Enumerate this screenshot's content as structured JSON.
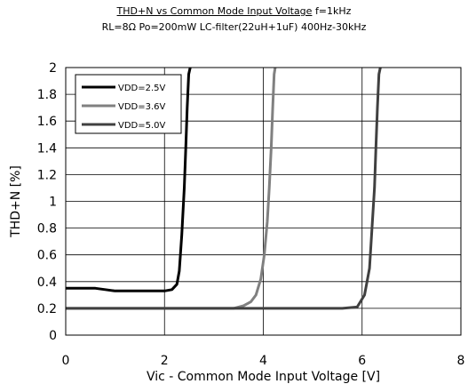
{
  "chart_data": {
    "type": "line",
    "title": "THD+N vs Common Mode Input Voltage",
    "title_suffix": "f=1kHz",
    "subtitle": "RL=8Ω Po=200mW LC-filter(22uH+1uF) 400Hz-30kHz",
    "xlabel": "Vic - Common Mode Input Voltage [V]",
    "ylabel": "THD+N [%]",
    "xlim": [
      0,
      8
    ],
    "ylim": [
      0,
      2
    ],
    "xticks": [
      "0",
      "2",
      "4",
      "6",
      "8"
    ],
    "yticks": [
      "0",
      "0.2",
      "0.4",
      "0.6",
      "0.8",
      "1",
      "1.2",
      "1.4",
      "1.6",
      "1.8",
      "2"
    ],
    "grid": true,
    "legend_position": "top-left",
    "series": [
      {
        "name": "VDD=2.5V",
        "color": "#000000",
        "x": [
          0.0,
          0.3,
          0.6,
          0.8,
          1.0,
          1.5,
          2.0,
          2.15,
          2.25,
          2.3,
          2.35,
          2.4,
          2.43,
          2.46,
          2.49,
          2.52
        ],
        "y": [
          0.35,
          0.35,
          0.35,
          0.34,
          0.33,
          0.33,
          0.33,
          0.34,
          0.38,
          0.48,
          0.75,
          1.1,
          1.4,
          1.7,
          1.95,
          2.0
        ]
      },
      {
        "name": "VDD=3.6V",
        "color": "#808080",
        "x": [
          0.0,
          1.0,
          2.0,
          3.0,
          3.4,
          3.6,
          3.75,
          3.85,
          3.95,
          4.02,
          4.08,
          4.12,
          4.16,
          4.19,
          4.22,
          4.24
        ],
        "y": [
          0.2,
          0.2,
          0.2,
          0.2,
          0.2,
          0.22,
          0.25,
          0.3,
          0.42,
          0.6,
          0.85,
          1.1,
          1.4,
          1.7,
          1.95,
          2.0
        ]
      },
      {
        "name": "VDD=5.0V",
        "color": "#404040",
        "x": [
          0.0,
          1.0,
          2.0,
          3.0,
          4.0,
          5.0,
          5.6,
          5.9,
          6.05,
          6.15,
          6.2,
          6.25,
          6.28,
          6.31,
          6.34,
          6.37
        ],
        "y": [
          0.2,
          0.2,
          0.2,
          0.2,
          0.2,
          0.2,
          0.2,
          0.21,
          0.3,
          0.5,
          0.8,
          1.1,
          1.4,
          1.7,
          1.95,
          2.0
        ]
      }
    ]
  }
}
